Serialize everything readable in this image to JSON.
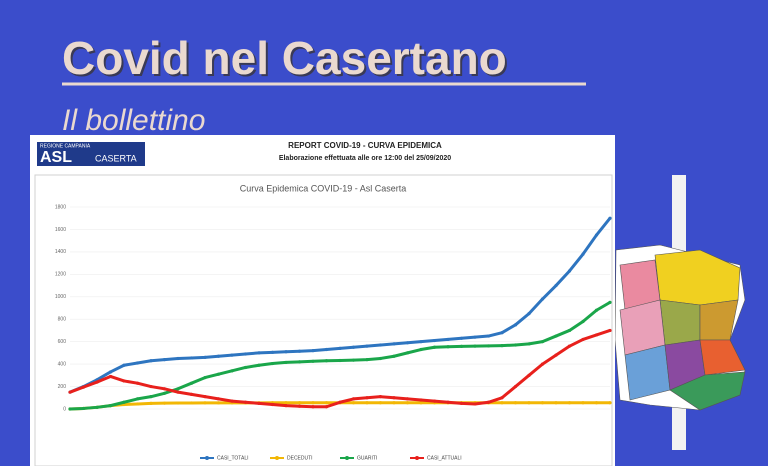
{
  "header": {
    "title": "Covid nel Casertano",
    "subtitle": "Il bollettino"
  },
  "report": {
    "logo_main": "ASL",
    "logo_region": "REGIONE CAMPANIA",
    "logo_city": "CASERTA",
    "heading": "REPORT COVID-19 - CURVA EPIDEMICA",
    "note": "Elaborazione effettuata alle ore 12:00 del 25/09/2020"
  },
  "chart_data": {
    "type": "line",
    "title": "Curva Epidemica COVID-19 - Asl Caserta",
    "categories": [
      null,
      null,
      null,
      null,
      null,
      null,
      null,
      null,
      null,
      null,
      null,
      null,
      null,
      null,
      null,
      null,
      null,
      null,
      null,
      null,
      null,
      null,
      null,
      null,
      null,
      null,
      null,
      null,
      null,
      null,
      null,
      null,
      null,
      null,
      null,
      null,
      null,
      null,
      null,
      null,
      null
    ],
    "series": [
      {
        "name": "CASI_TOTALI",
        "color": "#2e75c0",
        "values": [
          150,
          200,
          260,
          330,
          390,
          410,
          430,
          440,
          450,
          455,
          460,
          470,
          480,
          490,
          500,
          505,
          510,
          515,
          520,
          530,
          540,
          550,
          560,
          570,
          580,
          590,
          600,
          610,
          620,
          630,
          640,
          650,
          680,
          750,
          850,
          980,
          1100,
          1230,
          1380,
          1550,
          1700
        ]
      },
      {
        "name": "DECEDUTI",
        "color": "#f2b705",
        "values": [
          0,
          5,
          15,
          30,
          40,
          45,
          50,
          52,
          53,
          54,
          55,
          55,
          55,
          55,
          55,
          56,
          56,
          56,
          56,
          56,
          56,
          56,
          56,
          56,
          56,
          56,
          56,
          56,
          56,
          56,
          56,
          56,
          56,
          56,
          56,
          56,
          56,
          56,
          56,
          56,
          56
        ]
      },
      {
        "name": "GUARITI",
        "color": "#1aa64a",
        "values": [
          0,
          5,
          15,
          30,
          60,
          90,
          110,
          140,
          180,
          230,
          280,
          310,
          340,
          370,
          390,
          405,
          415,
          420,
          425,
          430,
          432,
          435,
          440,
          450,
          470,
          500,
          530,
          550,
          555,
          558,
          560,
          562,
          565,
          570,
          580,
          600,
          650,
          700,
          780,
          880,
          950
        ]
      },
      {
        "name": "CASI_ATTUALI",
        "color": "#e8201c",
        "values": [
          150,
          195,
          240,
          290,
          250,
          230,
          200,
          180,
          150,
          130,
          110,
          90,
          70,
          60,
          50,
          40,
          30,
          25,
          20,
          20,
          60,
          90,
          100,
          110,
          100,
          90,
          80,
          70,
          60,
          50,
          45,
          60,
          100,
          200,
          300,
          400,
          480,
          560,
          620,
          660,
          700
        ]
      }
    ],
    "ylim": [
      0,
      1800
    ],
    "yticks": [
      0,
      200,
      400,
      600,
      800,
      1000,
      1200,
      1400,
      1600,
      1800
    ],
    "grid": true,
    "legend": "bottom"
  }
}
